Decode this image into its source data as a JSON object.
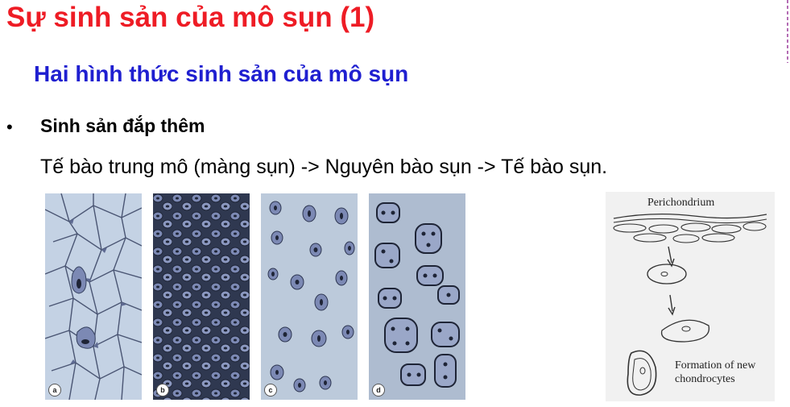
{
  "slide": {
    "title": "Sự sinh sản của mô sụn (1)",
    "subtitle": "Hai hình thức sinh sản của mô sụn",
    "bullet_symbol": "•",
    "bullet_label": "Sinh sản đắp thêm",
    "description": "Tế bào trung mô (màng sụn) -> Nguyên bào sụn -> Tế bào sụn."
  },
  "panels": [
    {
      "letter": "a"
    },
    {
      "letter": "b"
    },
    {
      "letter": "c"
    },
    {
      "letter": "d"
    }
  ],
  "diagram": {
    "top_label": "Perichondrium",
    "caption_line1": "Formation of new",
    "caption_line2": "chondrocytes"
  },
  "colors": {
    "title": "#ee1c25",
    "subtitle": "#1f1fd0",
    "tissue_bg": "#b8c8dc",
    "cell_fill": "#7c89b4",
    "nucleus": "#1e2436"
  }
}
